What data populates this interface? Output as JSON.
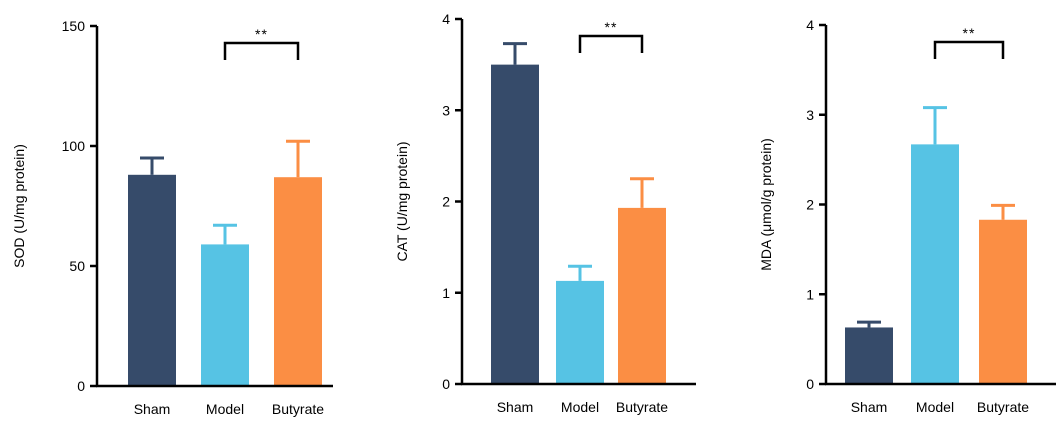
{
  "chart_data": [
    {
      "type": "bar",
      "categories": [
        "Sham",
        "Model",
        "Butyrate"
      ],
      "values": [
        88,
        59,
        87
      ],
      "errors": [
        7,
        8,
        15
      ],
      "ylabel": "SOD (U/mg protein)",
      "ylim": [
        0,
        150
      ],
      "yticks": [
        "0",
        "50",
        "100",
        "150"
      ],
      "significance": {
        "from": 1,
        "to": 2,
        "label": "**"
      }
    },
    {
      "type": "bar",
      "categories": [
        "Sham",
        "Model",
        "Butyrate"
      ],
      "values": [
        3.5,
        1.13,
        1.93
      ],
      "errors": [
        0.23,
        0.16,
        0.32
      ],
      "ylabel": "CAT (U/mg protein)",
      "ylim": [
        0,
        4
      ],
      "yticks": [
        "0",
        "1",
        "2",
        "3",
        "4"
      ],
      "significance": {
        "from": 1,
        "to": 2,
        "label": "**"
      }
    },
    {
      "type": "bar",
      "categories": [
        "Sham",
        "Model",
        "Butyrate"
      ],
      "values": [
        0.63,
        2.67,
        1.83
      ],
      "errors": [
        0.06,
        0.41,
        0.16
      ],
      "ylabel": "MDA (μmol/g protein)",
      "ylim": [
        0,
        4
      ],
      "yticks": [
        "0",
        "1",
        "2",
        "3",
        "4"
      ],
      "significance": {
        "from": 1,
        "to": 2,
        "label": "**"
      }
    }
  ],
  "colors": {
    "sham": "#364b6a",
    "model": "#56c3e4",
    "butyrate": "#fb8e44",
    "axis": "#000000"
  }
}
